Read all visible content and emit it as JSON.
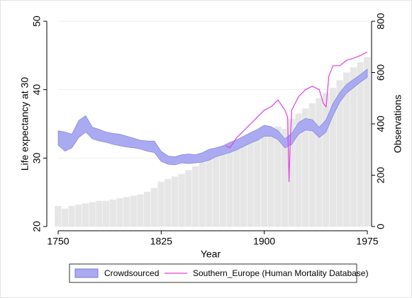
{
  "chart_data": {
    "type": "band-line-bar",
    "xlabel": "Year",
    "ylabel": "Life expectancy at 30",
    "y2label": "Observations",
    "xlim": [
      1750,
      1975
    ],
    "xticks": [
      1750,
      1825,
      1900,
      1975
    ],
    "ylim": [
      20,
      50
    ],
    "yticks": [
      20,
      30,
      40,
      50
    ],
    "y2lim": [
      0,
      800
    ],
    "y2ticks": [
      0,
      200,
      400,
      600,
      800
    ],
    "grid": true,
    "legend": "bottom",
    "bars": {
      "axis": "y2",
      "color": "#e6e6e6",
      "x": [
        1750,
        1755,
        1760,
        1765,
        1770,
        1775,
        1780,
        1785,
        1790,
        1795,
        1800,
        1805,
        1810,
        1815,
        1820,
        1825,
        1830,
        1835,
        1840,
        1845,
        1850,
        1855,
        1860,
        1865,
        1870,
        1875,
        1880,
        1885,
        1890,
        1895,
        1900,
        1905,
        1910,
        1915,
        1920,
        1925,
        1930,
        1935,
        1940,
        1945,
        1950,
        1955,
        1960,
        1965,
        1970,
        1975
      ],
      "values": [
        80,
        70,
        80,
        85,
        90,
        95,
        100,
        100,
        105,
        110,
        115,
        120,
        125,
        135,
        150,
        175,
        185,
        195,
        205,
        220,
        235,
        250,
        265,
        280,
        290,
        300,
        310,
        330,
        340,
        360,
        370,
        380,
        390,
        380,
        420,
        440,
        460,
        480,
        500,
        520,
        540,
        570,
        600,
        620,
        640,
        660
      ]
    },
    "series": [
      {
        "name": "Crowdsourced",
        "color": "#aaaaf0",
        "edge": "#7777dd",
        "x": [
          1750,
          1755,
          1760,
          1765,
          1770,
          1775,
          1780,
          1785,
          1790,
          1795,
          1800,
          1805,
          1810,
          1815,
          1820,
          1825,
          1830,
          1835,
          1840,
          1845,
          1850,
          1855,
          1860,
          1865,
          1870,
          1875,
          1880,
          1885,
          1890,
          1895,
          1900,
          1905,
          1910,
          1915,
          1920,
          1925,
          1930,
          1935,
          1940,
          1945,
          1950,
          1955,
          1960,
          1965,
          1970,
          1975
        ],
        "upper": [
          34.0,
          33.8,
          33.5,
          35.5,
          36.2,
          34.5,
          34.2,
          33.8,
          33.6,
          33.5,
          33.2,
          32.9,
          32.6,
          32.5,
          32.5,
          31.0,
          30.3,
          30.2,
          30.5,
          30.6,
          30.5,
          30.8,
          31.3,
          31.5,
          31.8,
          32.3,
          32.7,
          33.2,
          33.7,
          34.2,
          34.8,
          34.6,
          34.0,
          32.8,
          33.6,
          35.2,
          35.8,
          35.6,
          34.5,
          35.6,
          38.0,
          39.6,
          40.8,
          41.5,
          42.2,
          43.0
        ],
        "lower": [
          31.9,
          31.0,
          31.5,
          33.0,
          33.8,
          32.8,
          32.5,
          32.3,
          32.0,
          31.8,
          31.6,
          31.5,
          31.3,
          31.0,
          30.8,
          29.5,
          29.1,
          29.0,
          29.3,
          29.2,
          29.3,
          29.4,
          29.7,
          30.2,
          30.5,
          30.8,
          31.2,
          31.7,
          32.2,
          32.6,
          33.2,
          33.2,
          32.7,
          31.5,
          32.0,
          33.5,
          34.1,
          34.0,
          33.0,
          33.8,
          36.2,
          38.2,
          39.5,
          40.3,
          41.1,
          41.8
        ]
      },
      {
        "name": "Southern_Europe (Human Mortality Database)",
        "color": "#e040e0",
        "x": [
          1872,
          1875,
          1880,
          1885,
          1890,
          1895,
          1900,
          1905,
          1910,
          1915,
          1917,
          1918,
          1919,
          1920,
          1925,
          1930,
          1935,
          1940,
          1943,
          1945,
          1947,
          1950,
          1955,
          1960,
          1965,
          1970,
          1975
        ],
        "values": [
          31.8,
          31.5,
          33,
          34,
          35,
          36,
          37,
          37.5,
          38.5,
          37,
          36,
          26.5,
          33,
          37,
          39,
          40,
          40.5,
          40,
          38,
          37.5,
          42,
          43.5,
          43.5,
          44.3,
          44.6,
          45,
          45.5
        ]
      }
    ]
  }
}
